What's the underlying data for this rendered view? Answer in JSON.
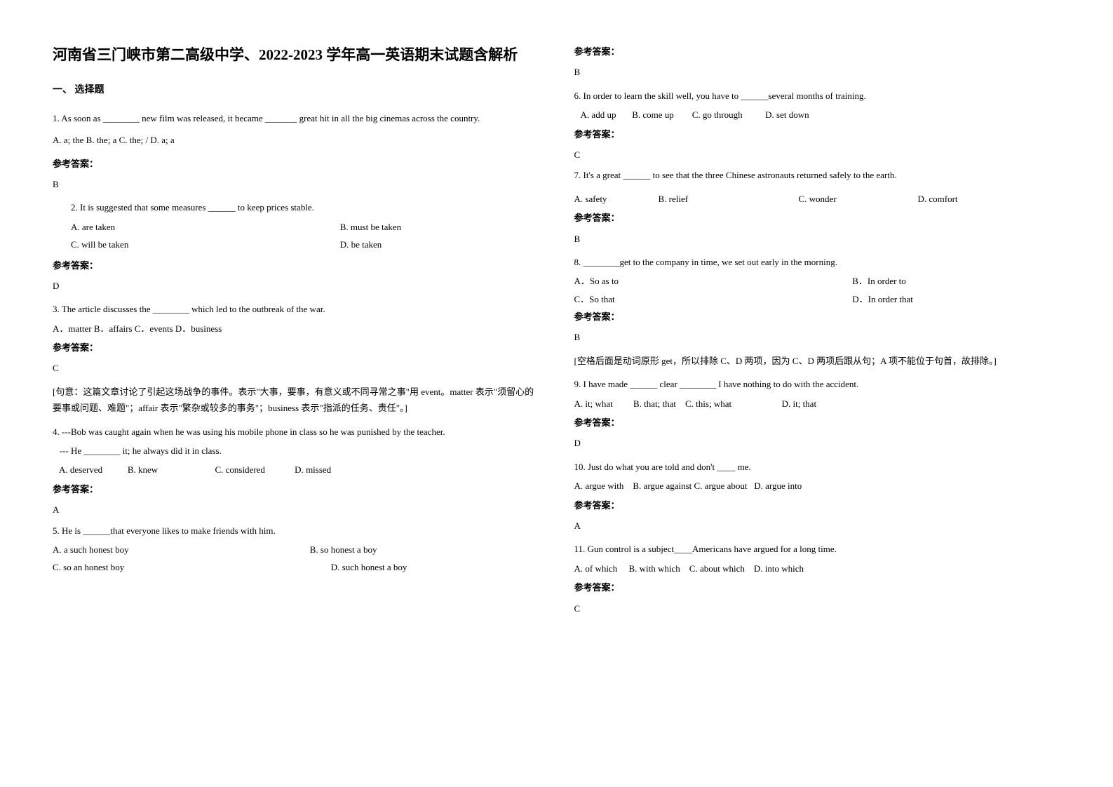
{
  "title": "河南省三门峡市第二高级中学、2022-2023 学年高一英语期末试题含解析",
  "section1_header": "一、 选择题",
  "answer_label": "参考答案：",
  "q1": {
    "text": "1. As soon as ________ new film was released, it became _______ great hit in all the big cinemas across the country.",
    "opts": "A. a; the   B. the; a   C. the; /   D. a; a",
    "ans": "B"
  },
  "q2": {
    "text": "2. It is suggested that some measures ______ to keep prices stable.",
    "a": "A. are taken",
    "b": "B. must be taken",
    "c": "C. will be taken",
    "d": "D. be taken",
    "ans": "D"
  },
  "q3": {
    "text": "3. The article discusses the ________ which led to the outbreak of the war.",
    "opts": "A．matter       B．affairs       C．events   D．business",
    "ans": "C",
    "exp": "[句意：这篇文章讨论了引起这场战争的事件。表示\"大事，要事，有意义或不同寻常之事\"用 event。matter 表示\"须留心的要事或问题、难题\"；affair 表示\"繁杂或较多的事务\"；business 表示\"指派的任务、责任\"。]"
  },
  "q4": {
    "text1": "4. ---Bob was caught again when he was using his mobile phone in class so he was punished by the teacher.",
    "text2": "   --- He ________ it; he always did it in class.",
    "opts": "   A. deserved           B. knew                         C. considered             D. missed",
    "ans": "A"
  },
  "q5": {
    "text": "5. He is ______that everyone likes to make friends with him.",
    "a": "A. a such honest boy",
    "b": "B. so honest a boy",
    "c": "C. so an honest boy",
    "d": "D. such honest a boy",
    "ans": "B"
  },
  "q6": {
    "text": "6. In order to learn the skill well, you have to ______several months of training.",
    "opts": "   A. add up       B. come up        C. go through          D. set down",
    "ans": "C"
  },
  "q7": {
    "text": "7. It's a great ______ to see that the three Chinese astronauts returned safely to the earth.",
    "a": "A. safety",
    "b": "B. relief",
    "c": "C. wonder",
    "d": "D. comfort",
    "ans": "B"
  },
  "q8": {
    "text": "8. ________get to the company in time, we set out early in the morning.",
    "a": "A．So as to",
    "b": "B．In order to",
    "c": "C．So that",
    "d": "D．In order that",
    "ans": "B",
    "exp": "[空格后面是动词原形 get，所以排除 C、D 两项，因为 C、D 两项后跟从句；A 项不能位于句首，故排除。]"
  },
  "q9": {
    "text": "9. I have made ______ clear ________ I have nothing to do with the accident.",
    "opts": "A. it; what         B. that; that    C. this; what                      D. it; that",
    "ans": "D"
  },
  "q10": {
    "text": "10. Just do what you are told and don't ____ me.",
    "opts": "A. argue with    B. argue against C. argue about   D. argue into",
    "ans": "A"
  },
  "q11": {
    "text": "11. Gun control is a subject____Americans have argued for a long time.",
    "opts": "A. of which     B. with which    C. about which    D. into which",
    "ans": "C"
  }
}
